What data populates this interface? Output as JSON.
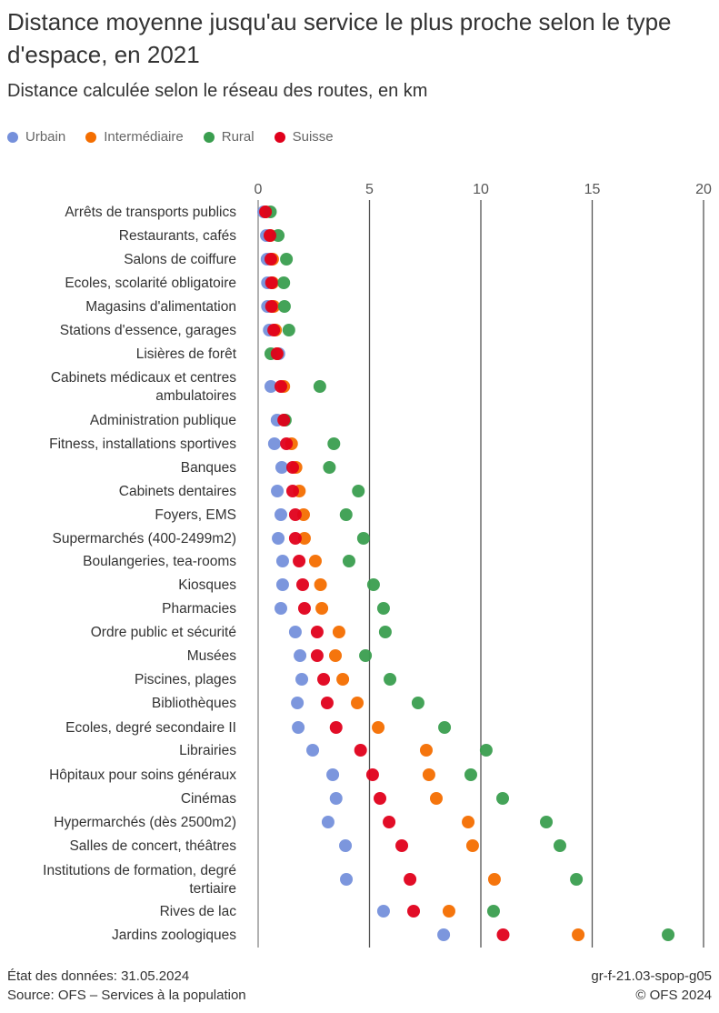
{
  "title": "Distance moyenne jusqu'au service le plus proche selon le type d'espace, en 2021",
  "subtitle": "Distance calculée selon le réseau des routes, en km",
  "footer": {
    "left_line1": "État des données: 31.05.2024",
    "left_line2": "Source: OFS – Services à la population",
    "right_line1": "gr-f-21.03-spop-g05",
    "right_line2": "© OFS 2024"
  },
  "chart_data": {
    "type": "scatter",
    "orientation": "horizontal dot plot",
    "xlim": [
      0,
      20
    ],
    "xticks": [
      0,
      5,
      10,
      15,
      20
    ],
    "grid": true,
    "legend_position": "top-left",
    "categories": [
      "Arrêts de transports publics",
      "Restaurants, cafés",
      "Salons de coiffure",
      "Ecoles, scolarité obligatoire",
      "Magasins d'alimentation",
      "Stations d'essence, garages",
      "Lisières de forêt",
      "Cabinets médicaux et centres ambulatoires",
      "Administration publique",
      "Fitness, installations sportives",
      "Banques",
      "Cabinets dentaires",
      "Foyers, EMS",
      "Supermarchés (400-2499m2)",
      "Boulangeries, tea-rooms",
      "Kiosques",
      "Pharmacies",
      "Ordre public et sécurité",
      "Musées",
      "Piscines, plages",
      "Bibliothèques",
      "Ecoles, degré secondaire II",
      "Librairies",
      "Hôpitaux pour soins généraux",
      "Cinémas",
      "Hypermarchés (dès 2500m2)",
      "Salles de concert, théâtres",
      "Institutions de formation, degré tertiaire",
      "Rives de lac",
      "Jardins zoologiques"
    ],
    "series": [
      {
        "name": "Urbain",
        "color": "#7590db",
        "values": [
          0.25,
          0.37,
          0.4,
          0.42,
          0.42,
          0.5,
          0.93,
          0.57,
          0.85,
          0.73,
          1.06,
          0.86,
          1.02,
          0.9,
          1.1,
          1.1,
          1.02,
          1.67,
          1.88,
          1.96,
          1.76,
          1.8,
          2.45,
          3.35,
          3.5,
          3.14,
          3.92,
          3.96,
          5.63,
          8.33
        ]
      },
      {
        "name": "Intermédiaire",
        "color": "#f46e00",
        "values": [
          0.35,
          0.55,
          0.65,
          0.65,
          0.7,
          0.78,
          0.85,
          1.15,
          1.18,
          1.5,
          1.7,
          1.85,
          2.04,
          2.08,
          2.57,
          2.8,
          2.86,
          3.63,
          3.47,
          3.8,
          4.45,
          5.39,
          7.55,
          7.67,
          8.0,
          9.43,
          9.63,
          10.61,
          8.57,
          14.37
        ]
      },
      {
        "name": "Rural",
        "color": "#3a9e4f",
        "values": [
          0.55,
          0.9,
          1.27,
          1.15,
          1.18,
          1.38,
          0.57,
          2.77,
          1.22,
          3.4,
          3.2,
          4.5,
          3.95,
          4.73,
          4.08,
          5.18,
          5.63,
          5.71,
          4.82,
          5.92,
          7.18,
          8.37,
          10.24,
          9.55,
          10.98,
          12.94,
          13.55,
          14.29,
          10.57,
          18.41
        ]
      },
      {
        "name": "Suisse",
        "color": "#e0001b",
        "values": [
          0.33,
          0.53,
          0.57,
          0.6,
          0.6,
          0.7,
          0.85,
          1.02,
          1.15,
          1.27,
          1.55,
          1.55,
          1.67,
          1.67,
          1.84,
          2.0,
          2.08,
          2.65,
          2.65,
          2.94,
          3.1,
          3.5,
          4.6,
          5.14,
          5.47,
          5.88,
          6.45,
          6.82,
          6.98,
          11.0
        ]
      }
    ]
  }
}
